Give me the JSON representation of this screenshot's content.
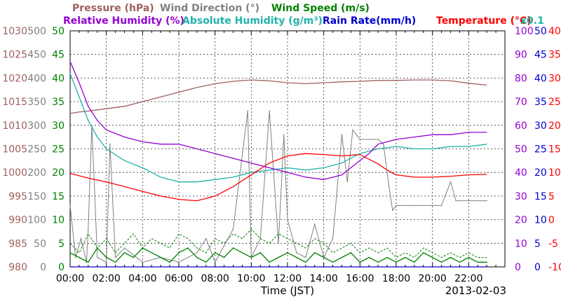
{
  "chart_data": {
    "type": "line",
    "date": "2013-02-03",
    "xlabel": "Time (JST)",
    "x_ticks": [
      "00:00",
      "02:00",
      "04:00",
      "06:00",
      "08:00",
      "10:00",
      "12:00",
      "14:00",
      "16:00",
      "18:00",
      "20:00",
      "22:00"
    ],
    "x_range_hours": [
      0,
      24
    ],
    "grid": true,
    "legend_row1": [
      {
        "id": "pressure",
        "text": "Pressure (hPa)",
        "color": "#a06060"
      },
      {
        "id": "wind_dir",
        "text": "Wind Direction (°)",
        "color": "#808080"
      },
      {
        "id": "wind_speed",
        "text": "Wind Speed (m/s)",
        "color": "#008000"
      }
    ],
    "legend_row2": [
      {
        "id": "rh",
        "text": "Relative Humidity (%)",
        "color": "#9400d3"
      },
      {
        "id": "ah",
        "text": "Absolute Humidity (g/m³)",
        "color": "#20b2aa"
      },
      {
        "id": "rain",
        "text": "Rain Rate(mm/h)",
        "color": "#0000cd"
      },
      {
        "id": "temp",
        "text": "Temperature (°C)",
        "color": "#ff0000"
      }
    ],
    "scale_note": "x0.1",
    "axes": {
      "pressure": {
        "min": 980,
        "max": 1030,
        "ticks": [
          "1030",
          "1025",
          "1020",
          "1015",
          "1010",
          "1005",
          "1000",
          "995",
          "990",
          "985",
          "980"
        ],
        "color": "#a06060"
      },
      "wind_dir": {
        "min": 0,
        "max": 500,
        "ticks": [
          "500",
          "450",
          "400",
          "350",
          "300",
          "250",
          "200",
          "150",
          "100",
          "50",
          "0"
        ],
        "color": "#808080"
      },
      "wind_speed": {
        "min": 0,
        "max": 50,
        "ticks": [
          "50",
          "45",
          "40",
          "35",
          "30",
          "25",
          "20",
          "15",
          "10",
          "5",
          "0"
        ],
        "color": "#008000"
      },
      "rh": {
        "min": 0,
        "max": 100,
        "ticks": [
          "100",
          "90",
          "80",
          "70",
          "60",
          "50",
          "40",
          "30",
          "20",
          "10",
          "0"
        ],
        "color": "#9400d3"
      },
      "rain": {
        "min": 0,
        "max": 50,
        "ticks": [
          "50",
          "45",
          "40",
          "35",
          "30",
          "25",
          "20",
          "15",
          "10",
          "5",
          "0"
        ],
        "color": "#0000cd"
      },
      "temp": {
        "min": -10,
        "max": 40,
        "ticks": [
          "40",
          "35",
          "30",
          "25",
          "20",
          "15",
          "10",
          "5",
          "0",
          "-5",
          "-10"
        ],
        "color": "#ff0000"
      }
    },
    "series": [
      {
        "id": "pressure",
        "name": "Pressure (hPa)",
        "axis": "pressure",
        "color": "#a06060",
        "x": [
          0,
          0.5,
          1,
          2,
          3,
          4,
          5,
          6,
          7,
          8,
          9,
          10,
          11,
          12,
          13,
          14,
          15,
          16,
          17,
          18,
          19,
          20,
          21,
          22,
          23
        ],
        "y": [
          1012.5,
          1012.8,
          1013.0,
          1013.5,
          1014.0,
          1015.0,
          1016.0,
          1017.0,
          1018.0,
          1018.8,
          1019.3,
          1019.6,
          1019.4,
          1019.0,
          1018.8,
          1019.0,
          1019.2,
          1019.3,
          1019.5,
          1019.5,
          1019.6,
          1019.6,
          1019.4,
          1018.9,
          1018.5
        ]
      },
      {
        "id": "rh",
        "name": "Relative Humidity (%)",
        "axis": "rh",
        "color": "#9400d3",
        "x": [
          0,
          0.5,
          1,
          1.5,
          2,
          3,
          4,
          5,
          6,
          7,
          8,
          9,
          10,
          11,
          12,
          13,
          14,
          15,
          16,
          16.5,
          17,
          18,
          19,
          20,
          21,
          22,
          23
        ],
        "y": [
          87,
          78,
          68,
          62,
          58,
          55,
          53,
          52,
          52,
          50,
          48,
          46,
          44,
          42,
          40,
          38,
          37,
          39,
          45,
          48,
          52,
          54,
          55,
          56,
          56,
          57,
          57
        ]
      },
      {
        "id": "ah",
        "name": "Absolute Humidity (g/m³)",
        "axis": "rh",
        "color": "#20b2aa",
        "x": [
          0,
          0.5,
          1,
          1.5,
          2,
          3,
          4,
          5,
          6,
          7,
          8,
          9,
          10,
          11,
          12,
          13,
          14,
          15,
          16,
          17,
          18,
          19,
          20,
          21,
          22,
          23
        ],
        "y": [
          82,
          72,
          62,
          55,
          50,
          45,
          42,
          38,
          36,
          36,
          37,
          38,
          40,
          41,
          42,
          41,
          42,
          44,
          48,
          50,
          51,
          50,
          50,
          51,
          51,
          52
        ]
      },
      {
        "id": "temp",
        "name": "Temperature (°C)",
        "axis": "temp",
        "color": "#ff0000",
        "x": [
          0,
          1,
          2,
          3,
          4,
          5,
          6,
          7,
          8,
          9,
          10,
          11,
          12,
          13,
          14,
          15,
          16,
          17,
          17.5,
          18,
          19,
          20,
          21,
          22,
          23
        ],
        "y": [
          9.8,
          8.8,
          8.0,
          7.0,
          6.0,
          5.0,
          4.3,
          4.0,
          5.0,
          7.0,
          9.5,
          12.0,
          13.5,
          14.0,
          13.8,
          13.5,
          13.8,
          11.8,
          10.5,
          9.5,
          9.0,
          9.0,
          9.2,
          9.5,
          9.6
        ]
      },
      {
        "id": "wind_dir",
        "name": "Wind Direction (°)",
        "axis": "wind_dir",
        "color": "#808080",
        "x": [
          0,
          0.3,
          0.6,
          0.9,
          1.0,
          1.2,
          1.5,
          2.0,
          2.2,
          2.5,
          3,
          4,
          5,
          6,
          7,
          7.5,
          8,
          9,
          9.8,
          10,
          10.5,
          11,
          11.5,
          11.8,
          12,
          12.5,
          13,
          13.5,
          14,
          14.5,
          15,
          15.3,
          15.6,
          16,
          16.5,
          17,
          17.3,
          17.6,
          17.8,
          18,
          19,
          20,
          20.5,
          21,
          21.3,
          22,
          23
        ],
        "y": [
          130,
          20,
          60,
          10,
          80,
          300,
          20,
          10,
          260,
          20,
          40,
          10,
          20,
          10,
          30,
          60,
          10,
          80,
          330,
          20,
          60,
          330,
          50,
          280,
          100,
          30,
          20,
          90,
          20,
          60,
          280,
          180,
          290,
          270,
          270,
          270,
          260,
          170,
          120,
          130,
          130,
          130,
          130,
          180,
          140,
          140,
          140
        ]
      },
      {
        "id": "wind_speed",
        "name": "Wind Speed (m/s)",
        "axis": "wind_speed",
        "color": "#008000",
        "x": [
          0,
          0.5,
          1,
          1.5,
          2,
          2.5,
          3,
          3.5,
          4,
          4.5,
          5,
          5.5,
          6,
          6.5,
          7,
          7.5,
          8,
          8.5,
          9,
          9.5,
          10,
          10.5,
          11,
          11.5,
          12,
          12.5,
          13,
          13.5,
          14,
          14.5,
          15,
          15.5,
          16,
          16.5,
          17,
          17.5,
          18,
          18.5,
          19,
          19.5,
          20,
          20.5,
          21,
          21.5,
          22,
          22.5,
          23
        ],
        "y": [
          3,
          2,
          1,
          4,
          2,
          1,
          3,
          2,
          4,
          3,
          2,
          1,
          3,
          4,
          2,
          1,
          3,
          2,
          4,
          3,
          2,
          3,
          1,
          2,
          3,
          2,
          1,
          3,
          2,
          1,
          2,
          3,
          1,
          2,
          1,
          2,
          1,
          2,
          1,
          3,
          2,
          1,
          2,
          1,
          2,
          1,
          1
        ]
      },
      {
        "id": "wind_gust",
        "axis": "wind_speed",
        "color": "#008000",
        "dashed": true,
        "x": [
          0,
          0.5,
          1,
          1.5,
          2,
          2.5,
          3,
          3.5,
          4,
          4.5,
          5,
          5.5,
          6,
          6.5,
          7,
          7.5,
          8,
          8.5,
          9,
          9.5,
          10,
          10.5,
          11,
          11.5,
          12,
          12.5,
          13,
          13.5,
          14,
          14.5,
          15,
          15.5,
          16,
          16.5,
          17,
          17.5,
          18,
          18.5,
          19,
          19.5,
          20,
          20.5,
          21,
          21.5,
          22,
          22.5,
          23
        ],
        "y": [
          5,
          3,
          7,
          4,
          6,
          3,
          5,
          7,
          4,
          6,
          5,
          4,
          7,
          6,
          4,
          3,
          6,
          5,
          7,
          6,
          8,
          6,
          5,
          7,
          6,
          5,
          4,
          6,
          5,
          3,
          4,
          5,
          3,
          4,
          3,
          4,
          2,
          3,
          2,
          4,
          3,
          2,
          3,
          2,
          3,
          2,
          2
        ]
      },
      {
        "id": "rain",
        "name": "Rain Rate(mm/h)",
        "axis": "rain",
        "color": "#0000cd",
        "x": [
          0,
          23
        ],
        "y": [
          0,
          0
        ]
      }
    ]
  }
}
